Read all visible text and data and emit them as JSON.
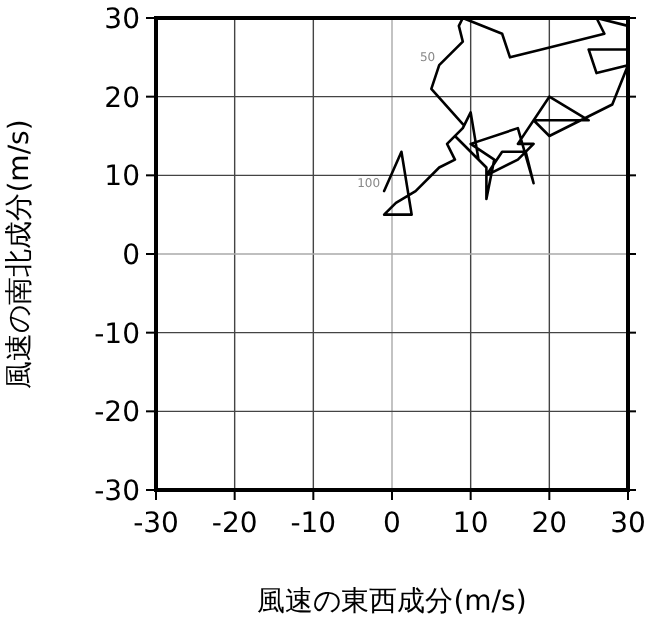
{
  "chart_data": {
    "type": "line",
    "xlabel": "風速の東西成分(m/s)",
    "ylabel": "風速の南北成分(m/s)",
    "xlim": [
      -30,
      30
    ],
    "ylim": [
      -30,
      30
    ],
    "xticks": [
      -30,
      -20,
      -10,
      0,
      10,
      20,
      30
    ],
    "yticks": [
      -30,
      -20,
      -10,
      0,
      10,
      20,
      30
    ],
    "grid": true,
    "marker": "none",
    "line_style": "solid",
    "series": [
      {
        "color": "#000000",
        "x": [
          -1,
          1.2,
          2.5,
          -1,
          0.5,
          3,
          6,
          8,
          7,
          9,
          10,
          11,
          8,
          12,
          12,
          13,
          10,
          16,
          18,
          17,
          14,
          12,
          16,
          18,
          16,
          20,
          25,
          18,
          20,
          24,
          28,
          30,
          26,
          25,
          30,
          30,
          26,
          27,
          19,
          15,
          14,
          9,
          8.5,
          9,
          6,
          5,
          9
        ],
        "values": [
          8,
          13,
          5,
          5,
          6.5,
          8,
          11,
          12,
          14,
          16,
          18,
          12,
          15,
          11,
          7,
          12,
          14,
          16,
          9,
          13,
          13,
          10,
          12,
          14,
          14,
          20,
          17,
          17,
          15,
          17,
          19,
          24,
          23,
          26,
          26,
          29,
          30,
          28,
          26,
          25,
          28,
          30,
          29,
          27,
          24,
          21,
          16.5
        ]
      }
    ],
    "annotations": [
      {
        "text": "100",
        "x": -1,
        "y": 8
      },
      {
        "text": "50",
        "x": 6,
        "y": 24
      }
    ]
  }
}
